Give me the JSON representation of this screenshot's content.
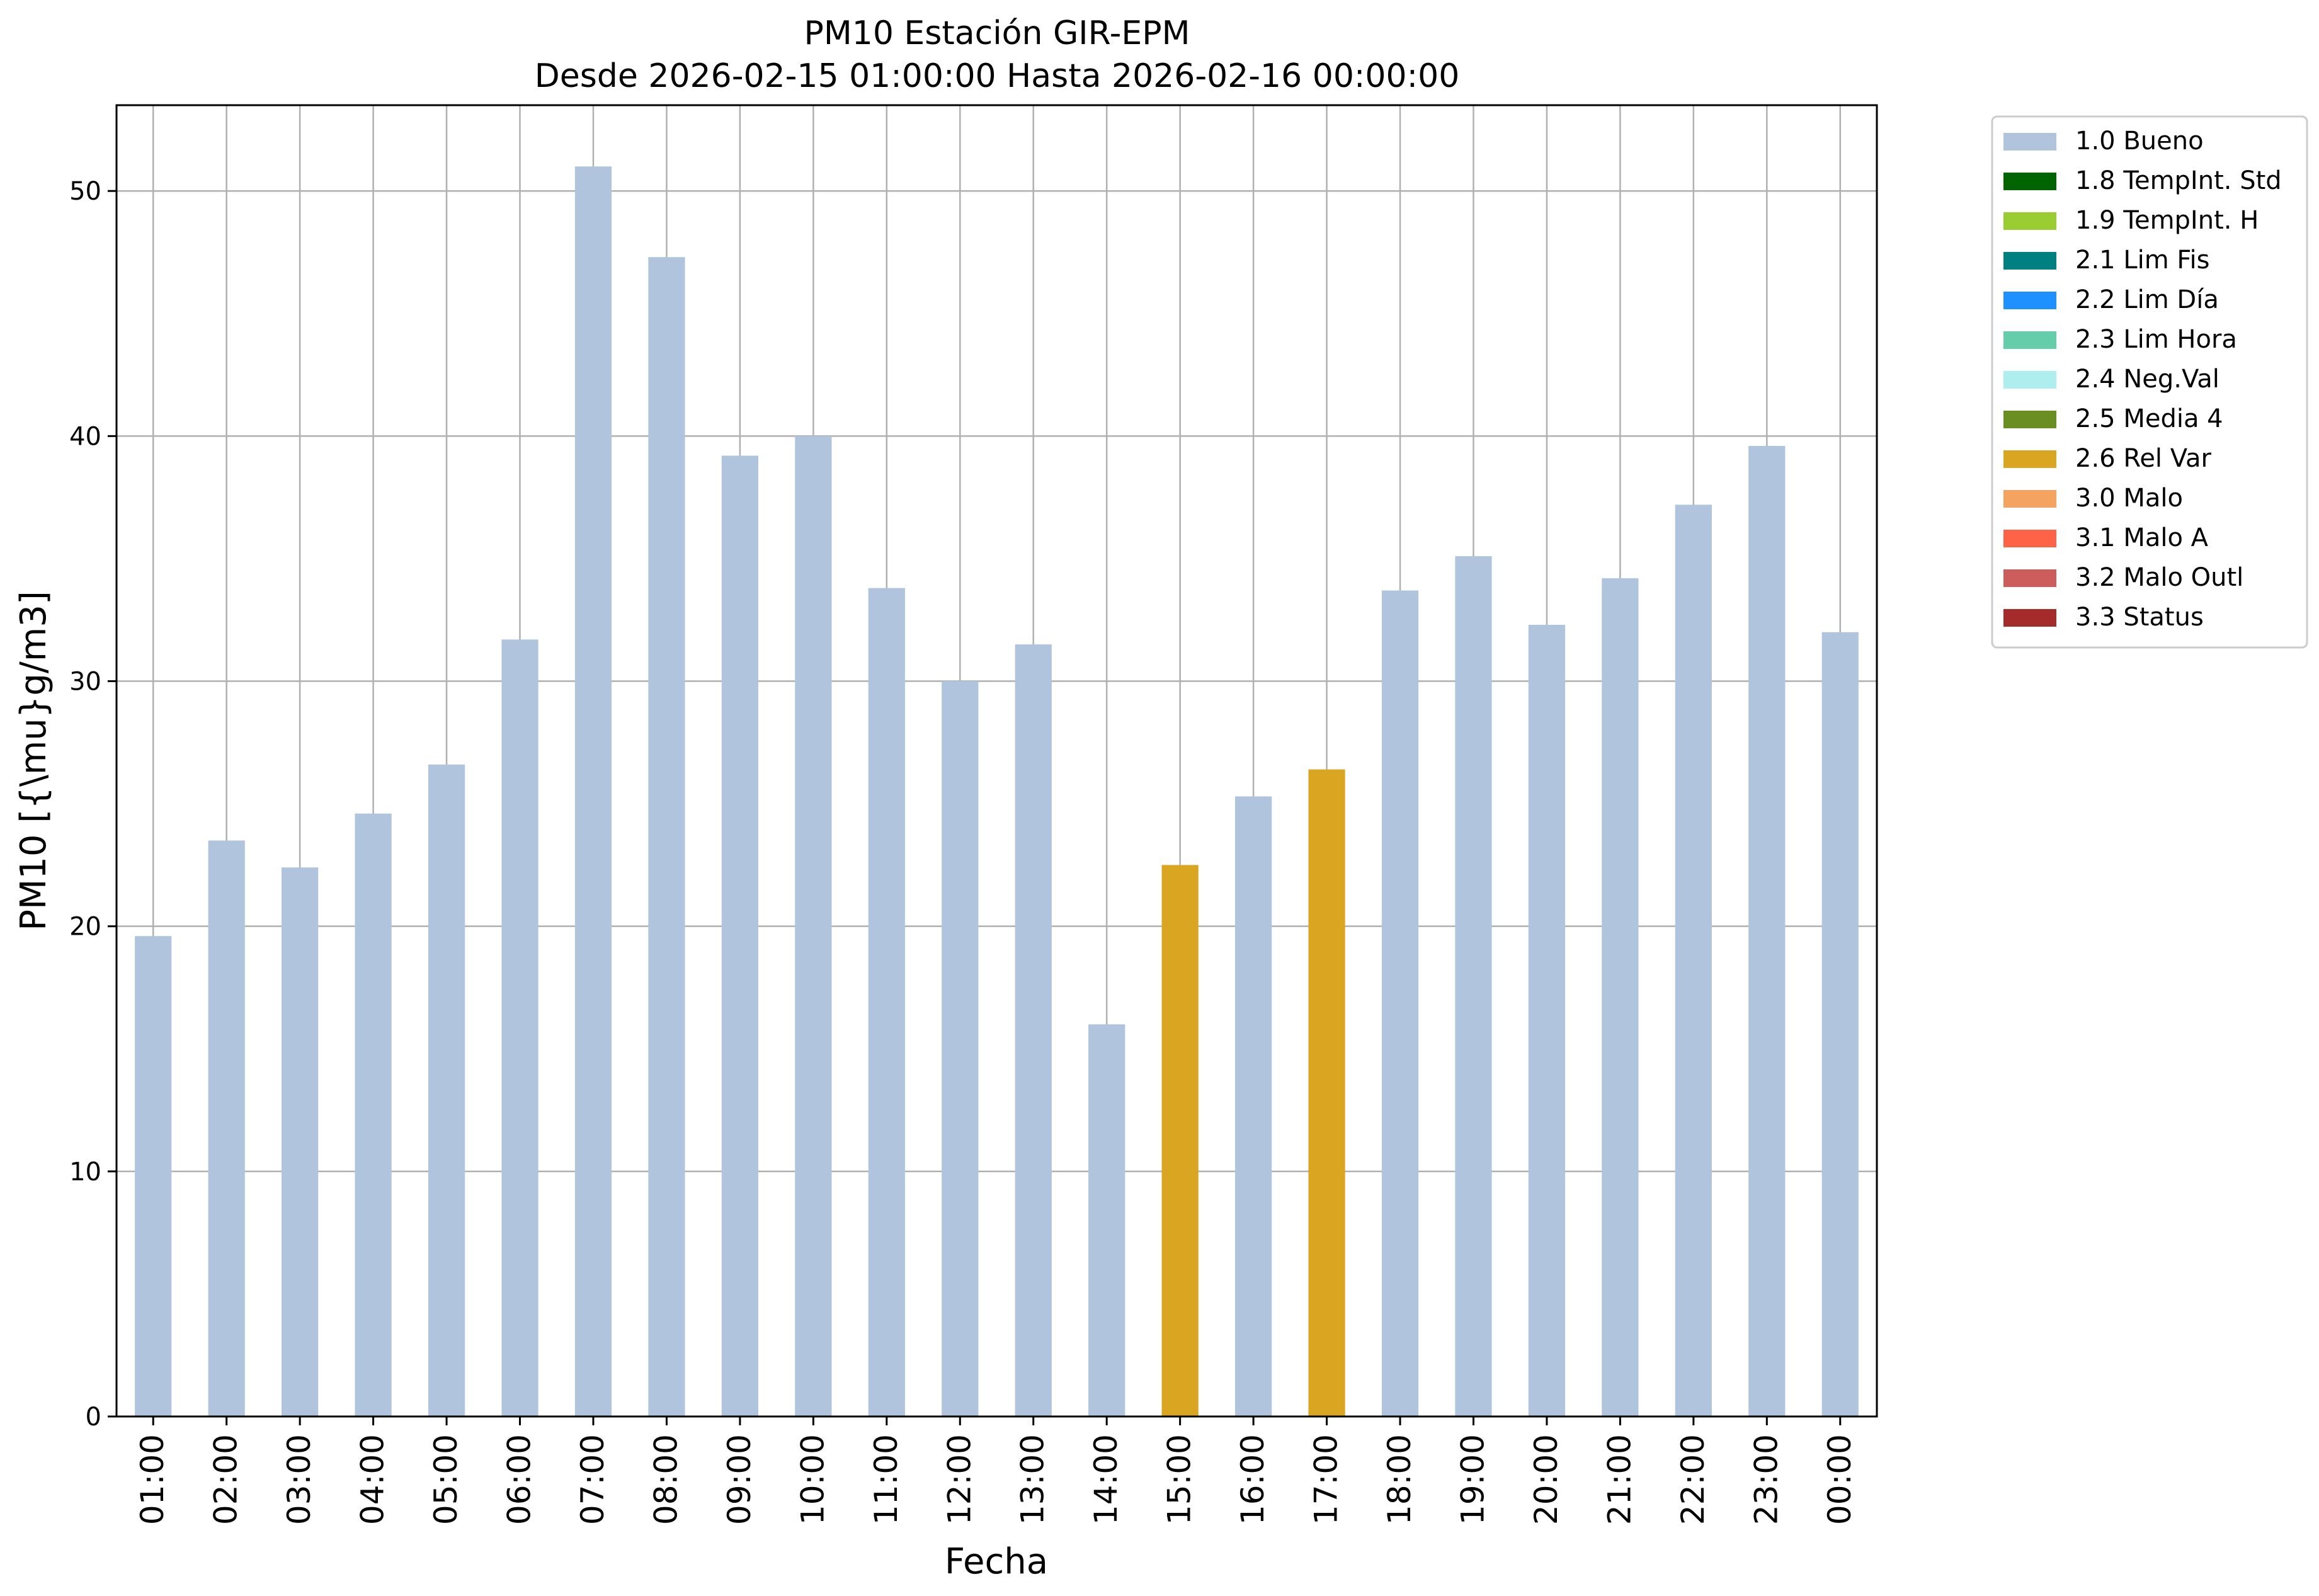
{
  "chart_data": {
    "type": "bar",
    "title": "PM10 Estación GIR-EPM",
    "subtitle": "Desde 2026-02-15 01:00:00 Hasta 2026-02-16 00:00:00",
    "xlabel": "Fecha",
    "ylabel": "PM10 [{\\mu}g/m3]",
    "ylim": [
      0,
      53.5
    ],
    "yticks": [
      0,
      10,
      20,
      30,
      40,
      50
    ],
    "grid": true,
    "legend_position": "outside-top-right",
    "categories": [
      "01:00",
      "02:00",
      "03:00",
      "04:00",
      "05:00",
      "06:00",
      "07:00",
      "08:00",
      "09:00",
      "10:00",
      "11:00",
      "12:00",
      "13:00",
      "14:00",
      "15:00",
      "16:00",
      "17:00",
      "18:00",
      "19:00",
      "20:00",
      "21:00",
      "22:00",
      "23:00",
      "00:00"
    ],
    "values": [
      19.6,
      23.5,
      22.4,
      24.6,
      26.6,
      31.7,
      51.0,
      47.3,
      39.2,
      40.0,
      33.8,
      30.0,
      31.5,
      16.0,
      22.5,
      25.3,
      26.4,
      33.7,
      35.1,
      32.3,
      34.2,
      37.2,
      39.6,
      32.0
    ],
    "flags": [
      "1.0 Bueno",
      "1.0 Bueno",
      "1.0 Bueno",
      "1.0 Bueno",
      "1.0 Bueno",
      "1.0 Bueno",
      "1.0 Bueno",
      "1.0 Bueno",
      "1.0 Bueno",
      "1.0 Bueno",
      "1.0 Bueno",
      "1.0 Bueno",
      "1.0 Bueno",
      "1.0 Bueno",
      "2.6 Rel Var",
      "1.0 Bueno",
      "2.6 Rel Var",
      "1.0 Bueno",
      "1.0 Bueno",
      "1.0 Bueno",
      "1.0 Bueno",
      "1.0 Bueno",
      "1.0 Bueno",
      "1.0 Bueno"
    ],
    "legend": [
      {
        "name": "1.0 Bueno",
        "color": "#b0c4de"
      },
      {
        "name": "1.8 TempInt. Std",
        "color": "#006400"
      },
      {
        "name": "1.9 TempInt. H",
        "color": "#9acd32"
      },
      {
        "name": "2.1 Lim Fis",
        "color": "#008080"
      },
      {
        "name": "2.2 Lim Día",
        "color": "#1e90ff"
      },
      {
        "name": "2.3 Lim Hora",
        "color": "#66cdaa"
      },
      {
        "name": "2.4 Neg.Val",
        "color": "#afeeee"
      },
      {
        "name": "2.5 Media 4",
        "color": "#6b8e23"
      },
      {
        "name": "2.6 Rel Var",
        "color": "#daa520"
      },
      {
        "name": "3.0 Malo",
        "color": "#f4a460"
      },
      {
        "name": "3.1 Malo A",
        "color": "#ff6347"
      },
      {
        "name": "3.2 Malo Outl",
        "color": "#cd5c5c"
      },
      {
        "name": "3.3 Status",
        "color": "#a52a2a"
      }
    ]
  }
}
